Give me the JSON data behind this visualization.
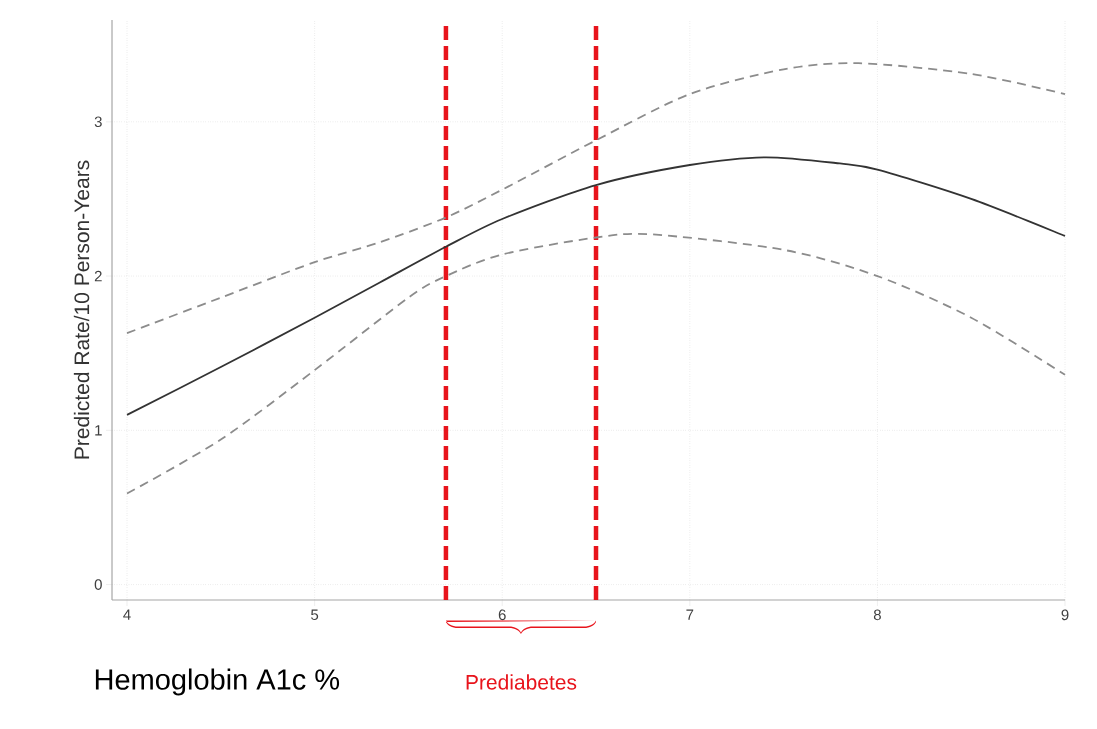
{
  "chart_data": {
    "type": "line",
    "xlabel": "Hemoglobin A1c %",
    "ylabel": "Predicted Rate/10 Person-Years",
    "xlim": [
      3.92,
      9.0
    ],
    "ylim": [
      -0.1,
      3.66
    ],
    "xticks": [
      4,
      5,
      6,
      7,
      8,
      9
    ],
    "yticks": [
      0,
      1,
      2,
      3
    ],
    "grid": true,
    "marker": "none",
    "series": [
      {
        "color": "#333333",
        "line_style": "solid",
        "x": [
          4,
          4.5,
          5,
          5.35,
          5.7,
          6,
          6.5,
          7,
          7.4,
          7.8,
          8,
          8.5,
          9
        ],
        "values": [
          1.1,
          1.41,
          1.73,
          1.96,
          2.19,
          2.37,
          2.59,
          2.72,
          2.77,
          2.73,
          2.69,
          2.5,
          2.26
        ]
      },
      {
        "color": "#8c8c8c",
        "line_style": "dashed",
        "x": [
          4,
          4.5,
          5,
          5.35,
          5.7,
          6,
          6.5,
          7,
          7.5,
          7.9,
          8.5,
          9
        ],
        "values": [
          1.63,
          1.86,
          2.09,
          2.22,
          2.38,
          2.56,
          2.88,
          3.18,
          3.34,
          3.38,
          3.31,
          3.18
        ]
      },
      {
        "color": "#8c8c8c",
        "line_style": "dashed",
        "x": [
          4,
          4.5,
          5,
          5.5,
          5.7,
          6,
          6.5,
          6.8,
          7.5,
          8,
          8.5,
          9
        ],
        "values": [
          0.59,
          0.94,
          1.39,
          1.86,
          2.0,
          2.14,
          2.25,
          2.27,
          2.17,
          2.0,
          1.73,
          1.36
        ]
      }
    ],
    "ref_lines": [
      {
        "axis": "x",
        "value": 5.7,
        "color": "#e8141c",
        "line_style": "dashed"
      },
      {
        "axis": "x",
        "value": 6.5,
        "color": "#e8141c",
        "line_style": "dashed"
      }
    ],
    "annotations": [
      "Prediabetes"
    ]
  }
}
